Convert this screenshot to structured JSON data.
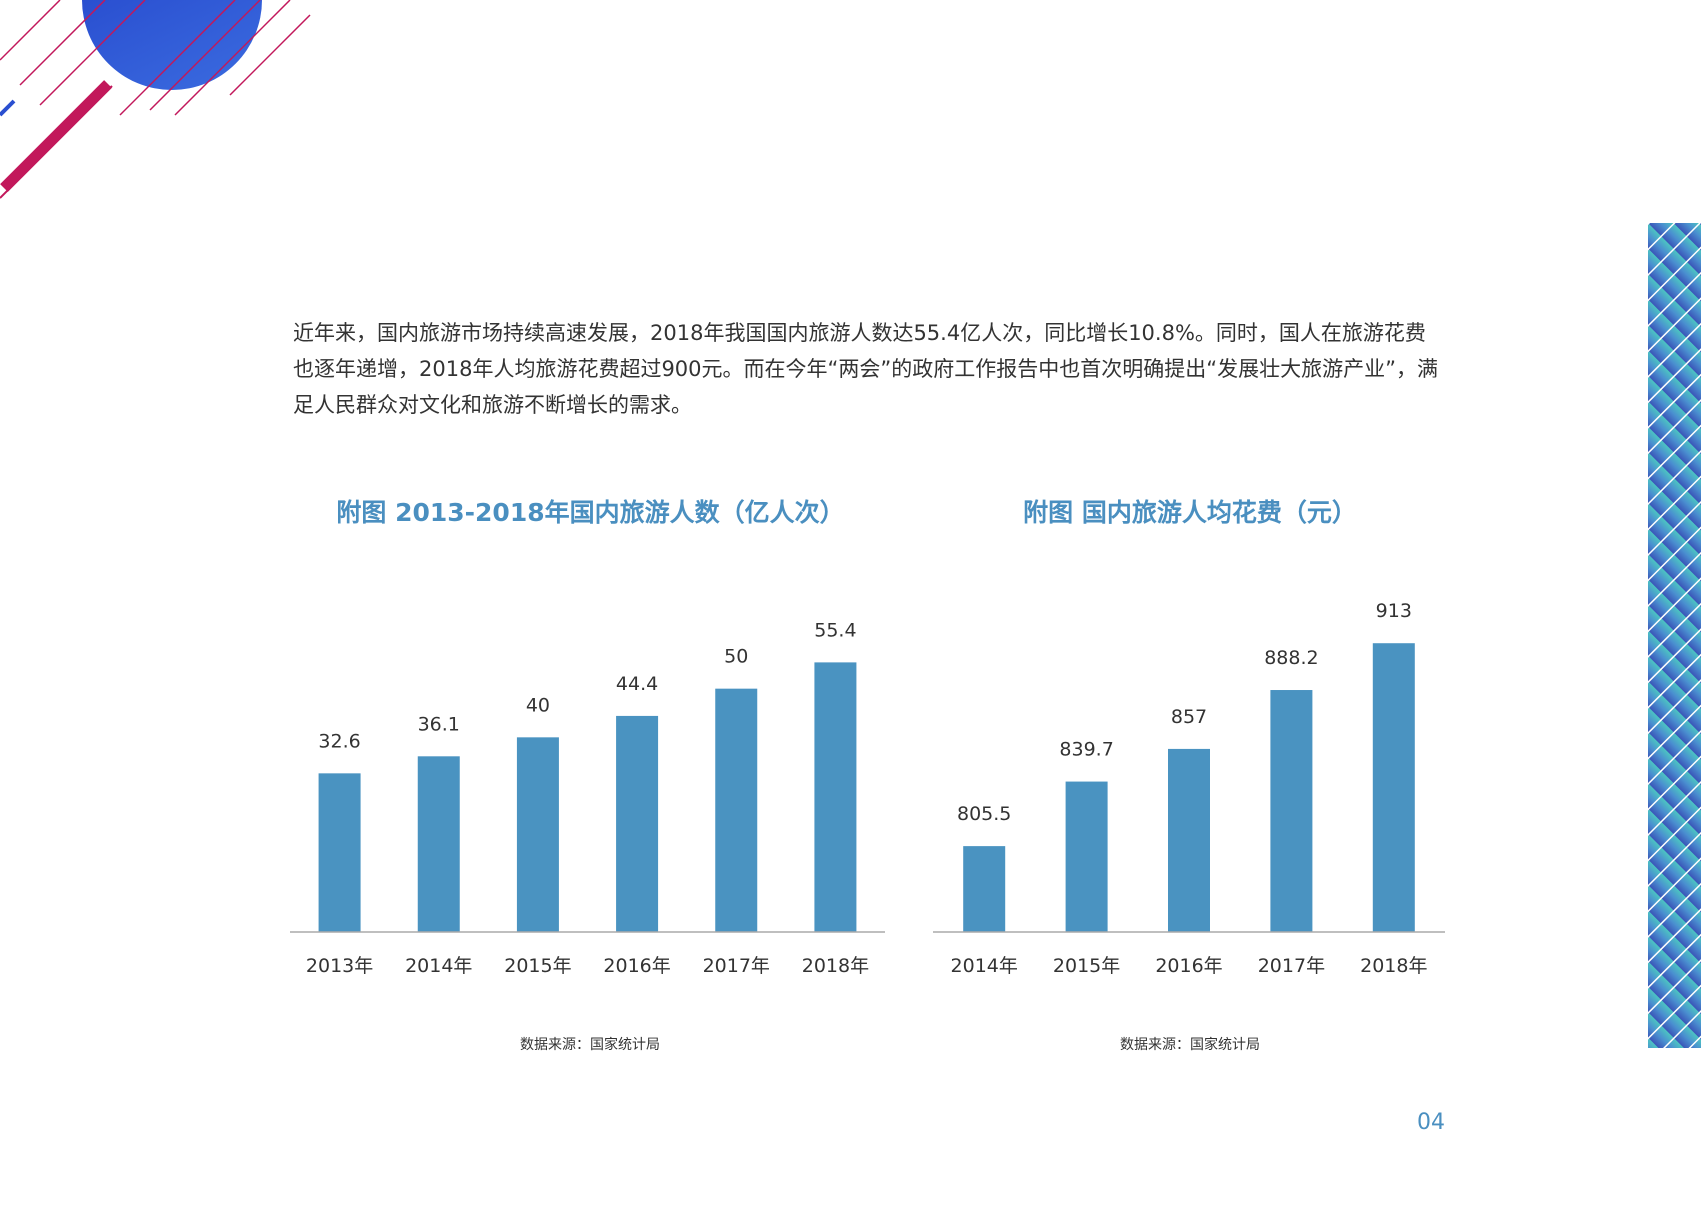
{
  "intro_text": "近年来，国内旅游市场持续高速发展，2018年我国国内旅游人数达55.4亿人次，同比增长10.8%。同时，国人在旅游花费也逐年递增，2018年人均旅游花费超过900元。而在今年“两会”的政府工作报告中也首次明确提出“发展壮大旅游产业”，满足人民群众对文化和旅游不断增长的需求。",
  "page_number": "04",
  "colors": {
    "bar": "#4a93c1",
    "title": "#4a8fc0",
    "axis": "#aaaaaa",
    "accent_pink": "#c2185b",
    "accent_blue": "#2f56d6"
  },
  "charts": [
    {
      "title": "附图  2013-2018年国内旅游人数（亿人次）",
      "source": "数据来源：国家统计局"
    },
    {
      "title": "附图 国内旅游人均花费（元）",
      "source": "数据来源：国家统计局"
    }
  ],
  "chart_data": [
    {
      "type": "bar",
      "title": "附图  2013-2018年国内旅游人数（亿人次）",
      "categories": [
        "2013年",
        "2014年",
        "2015年",
        "2016年",
        "2017年",
        "2018年"
      ],
      "values": [
        32.6,
        36.1,
        40,
        44.4,
        50,
        55.4
      ],
      "value_labels": [
        "32.6",
        "36.1",
        "40",
        "44.4",
        "50",
        "55.4"
      ],
      "ylim": [
        0,
        60
      ],
      "grid": false,
      "y_axis_visible": false
    },
    {
      "type": "bar",
      "title": "附图 国内旅游人均花费（元）",
      "categories": [
        "2014年",
        "2015年",
        "2016年",
        "2017年",
        "2018年"
      ],
      "values": [
        805.5,
        839.7,
        857,
        888.2,
        913
      ],
      "value_labels": [
        "805.5",
        "839.7",
        "857",
        "888.2",
        "913"
      ],
      "ylim": [
        760,
        920
      ],
      "grid": false,
      "y_axis_visible": false
    }
  ]
}
